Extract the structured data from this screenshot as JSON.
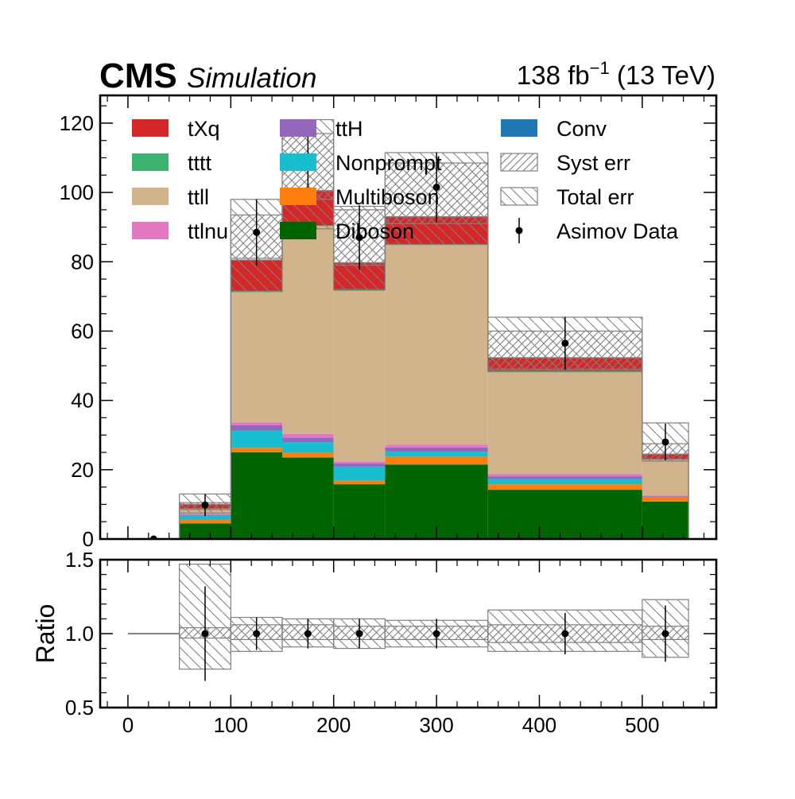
{
  "header": {
    "experiment": "CMS",
    "status": "Simulation",
    "lumi": "138 fb",
    "lumi_exp": "−1",
    "energy": " (13 TeV)"
  },
  "chart_data": {
    "type": "bar",
    "stacked": true,
    "histogram": true,
    "bin_edges": [
      0,
      50,
      100,
      150,
      200,
      250,
      350,
      500,
      545
    ],
    "bin_centers": [
      25,
      75,
      125,
      175,
      225,
      300,
      425,
      522.5
    ],
    "xlim": [
      -27,
      572
    ],
    "upper_panel": {
      "ylim": [
        0,
        128
      ],
      "yticks": [
        0,
        20,
        40,
        60,
        80,
        100,
        120
      ],
      "ylabel": "",
      "grid": false
    },
    "lower_panel": {
      "ylim": [
        0.5,
        1.5
      ],
      "yticks": [
        0.5,
        1.0,
        1.5
      ],
      "ytick_labels": [
        "0.5",
        "1.0",
        "1.5"
      ],
      "ylabel": "Ratio",
      "xticks": [
        0,
        100,
        200,
        300,
        400,
        500
      ]
    },
    "series": [
      {
        "name": "Diboson",
        "color": "#006400",
        "values": [
          0,
          4.5,
          25.0,
          23.5,
          15.8,
          21.5,
          14.2,
          10.8
        ]
      },
      {
        "name": "Multiboson",
        "color": "#ff7f0e",
        "values": [
          0,
          1.0,
          1.3,
          1.4,
          1.0,
          2.2,
          1.6,
          1.2
        ]
      },
      {
        "name": "Nonprompt",
        "color": "#17becf",
        "values": [
          0,
          1.2,
          5.0,
          3.0,
          4.0,
          1.5,
          1.5,
          0.0
        ]
      },
      {
        "name": "ttH",
        "color": "#9467bd",
        "values": [
          0,
          0.3,
          1.5,
          1.4,
          1.0,
          1.2,
          0.8,
          0.3
        ]
      },
      {
        "name": "ttlnu",
        "color": "#e377c2",
        "values": [
          0,
          0.2,
          0.8,
          1.0,
          0.6,
          0.8,
          0.6,
          0.2
        ]
      },
      {
        "name": "ttll",
        "color": "#d2b48c",
        "values": [
          0,
          1.5,
          37.6,
          60.0,
          49.2,
          57.6,
          29.4,
          10.5
        ]
      },
      {
        "name": "tttt",
        "color": "#3cb371",
        "values": [
          0,
          0.1,
          0.3,
          0.2,
          0.2,
          0.2,
          0.2,
          0.1
        ]
      },
      {
        "name": "tXq",
        "color": "#d62728",
        "values": [
          0,
          1.2,
          9.0,
          10.0,
          7.9,
          8.0,
          4.0,
          1.4
        ]
      },
      {
        "name": "Conv",
        "color": "#1f77b4",
        "values": [
          0,
          0.0,
          0.0,
          0.0,
          0.0,
          0.0,
          0.0,
          0.0
        ]
      }
    ],
    "asimov_data": {
      "name": "Asimov Data",
      "values": [
        0,
        9.8,
        88.5,
        109.5,
        87.0,
        101.5,
        56.5,
        28.0
      ],
      "errors": [
        0,
        3.2,
        9.5,
        10.5,
        9.3,
        10.1,
        7.6,
        5.3
      ]
    },
    "syst_err": {
      "name": "Syst err",
      "lower": [
        0,
        8.5,
        81.0,
        98.0,
        79.0,
        91.0,
        49.0,
        23.0
      ],
      "upper": [
        0,
        10.5,
        93.5,
        117.0,
        95.0,
        108.5,
        60.0,
        27.5
      ]
    },
    "total_err": {
      "name": "Total err",
      "lower": [
        0,
        7.5,
        71.5,
        89.5,
        72.0,
        85.0,
        48.5,
        22.5
      ],
      "upper": [
        0,
        13.0,
        98.0,
        121.0,
        96.0,
        111.5,
        64.0,
        33.5
      ]
    },
    "ratio": {
      "points": [
        1.0,
        1.0,
        1.0,
        1.0,
        1.0,
        1.0,
        1.0
      ],
      "point_bins": [
        1,
        2,
        3,
        4,
        5,
        6,
        7
      ],
      "errors": [
        0.32,
        0.11,
        0.1,
        0.1,
        0.1,
        0.14,
        0.19
      ],
      "syst_lower": [
        1.0,
        0.97,
        0.96,
        0.96,
        0.96,
        0.96,
        0.94,
        0.96
      ],
      "syst_upper": [
        1.0,
        1.04,
        1.06,
        1.06,
        1.05,
        1.05,
        1.06,
        1.05
      ],
      "total_lower": [
        1.0,
        0.76,
        0.88,
        0.91,
        0.9,
        0.91,
        0.88,
        0.84
      ],
      "total_upper": [
        1.0,
        1.47,
        1.11,
        1.1,
        1.1,
        1.09,
        1.16,
        1.23
      ]
    },
    "legend": {
      "placement": "top",
      "entries": [
        {
          "label": "tXq",
          "type": "fill",
          "color": "#d62728"
        },
        {
          "label": "tttt",
          "type": "fill",
          "color": "#3cb371"
        },
        {
          "label": "ttll",
          "type": "fill",
          "color": "#d2b48c"
        },
        {
          "label": "ttlnu",
          "type": "fill",
          "color": "#e377c2"
        },
        {
          "label": "ttH",
          "type": "fill",
          "color": "#9467bd"
        },
        {
          "label": "Nonprompt",
          "type": "fill",
          "color": "#17becf"
        },
        {
          "label": "Multiboson",
          "type": "fill",
          "color": "#ff7f0e"
        },
        {
          "label": "Diboson",
          "type": "fill",
          "color": "#006400"
        },
        {
          "label": "Conv",
          "type": "fill",
          "color": "#1f77b4"
        },
        {
          "label": "Syst err",
          "type": "hatch-syst"
        },
        {
          "label": "Total err",
          "type": "hatch-total"
        },
        {
          "label": "Asimov Data",
          "type": "marker"
        }
      ]
    }
  }
}
